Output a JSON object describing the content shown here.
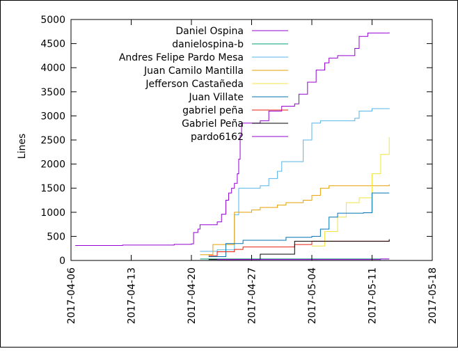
{
  "chart_data": {
    "type": "line",
    "title": "",
    "xlabel": "",
    "ylabel": "Lines",
    "xlim": [
      "2017-04-06",
      "2017-05-18"
    ],
    "ylim": [
      0,
      5000
    ],
    "x_ticks": [
      "2017-04-06",
      "2017-04-13",
      "2017-04-20",
      "2017-04-27",
      "2017-05-04",
      "2017-05-11",
      "2017-05-18"
    ],
    "y_ticks": [
      0,
      500,
      1000,
      1500,
      2000,
      2500,
      3000,
      3500,
      4000,
      4500,
      5000
    ],
    "grid": false,
    "legend_position": "top-right",
    "step": true,
    "series": [
      {
        "name": "Daniel Ospina",
        "color": "#9400d3",
        "points": [
          [
            "2017-04-06 12:00",
            310
          ],
          [
            "2017-04-12 00:00",
            320
          ],
          [
            "2017-04-18 00:00",
            335
          ],
          [
            "2017-04-20 00:00",
            345
          ],
          [
            "2017-04-20 06:00",
            580
          ],
          [
            "2017-04-20 18:00",
            650
          ],
          [
            "2017-04-21 00:00",
            740
          ],
          [
            "2017-04-23 00:00",
            800
          ],
          [
            "2017-04-23 12:00",
            960
          ],
          [
            "2017-04-24 00:00",
            1250
          ],
          [
            "2017-04-24 08:00",
            1400
          ],
          [
            "2017-04-24 16:00",
            1500
          ],
          [
            "2017-04-25 00:00",
            1600
          ],
          [
            "2017-04-25 08:00",
            1800
          ],
          [
            "2017-04-25 12:00",
            2100
          ],
          [
            "2017-04-25 16:00",
            2600
          ],
          [
            "2017-04-25 20:00",
            2850
          ],
          [
            "2017-04-28 00:00",
            2900
          ],
          [
            "2017-04-29 00:00",
            3100
          ],
          [
            "2017-04-30 12:00",
            3200
          ],
          [
            "2017-05-02 00:00",
            3250
          ],
          [
            "2017-05-02 12:00",
            3450
          ],
          [
            "2017-05-03 12:00",
            3700
          ],
          [
            "2017-05-04 12:00",
            3950
          ],
          [
            "2017-05-05 12:00",
            4100
          ],
          [
            "2017-05-06 00:00",
            4200
          ],
          [
            "2017-05-07 00:00",
            4250
          ],
          [
            "2017-05-09 00:00",
            4400
          ],
          [
            "2017-05-09 12:00",
            4650
          ],
          [
            "2017-05-10 12:00",
            4720
          ],
          [
            "2017-05-13 00:00",
            4730
          ]
        ]
      },
      {
        "name": "danielospina-b",
        "color": "#009e73",
        "points": [
          [
            "2017-04-21 00:00",
            30
          ],
          [
            "2017-05-09 00:00",
            30
          ],
          [
            "2017-05-13 00:00",
            30
          ]
        ]
      },
      {
        "name": "Andres Felipe Pardo Mesa",
        "color": "#56b4e9",
        "points": [
          [
            "2017-04-21 00:00",
            190
          ],
          [
            "2017-04-23 00:00",
            220
          ],
          [
            "2017-04-25 00:00",
            950
          ],
          [
            "2017-04-25 12:00",
            1500
          ],
          [
            "2017-04-28 00:00",
            1550
          ],
          [
            "2017-04-29 00:00",
            1700
          ],
          [
            "2017-04-30 00:00",
            1850
          ],
          [
            "2017-04-30 12:00",
            2050
          ],
          [
            "2017-05-03 00:00",
            2500
          ],
          [
            "2017-05-04 00:00",
            2850
          ],
          [
            "2017-05-05 00:00",
            2900
          ],
          [
            "2017-05-09 00:00",
            2950
          ],
          [
            "2017-05-09 12:00",
            3100
          ],
          [
            "2017-05-11 00:00",
            3150
          ],
          [
            "2017-05-13 00:00",
            3160
          ]
        ]
      },
      {
        "name": "Juan Camilo Mantilla",
        "color": "#e69f00",
        "points": [
          [
            "2017-04-21 00:00",
            120
          ],
          [
            "2017-04-22 12:00",
            330
          ],
          [
            "2017-04-25 00:00",
            1000
          ],
          [
            "2017-04-27 00:00",
            1050
          ],
          [
            "2017-04-28 00:00",
            1100
          ],
          [
            "2017-04-30 00:00",
            1150
          ],
          [
            "2017-05-01 00:00",
            1200
          ],
          [
            "2017-05-03 00:00",
            1250
          ],
          [
            "2017-05-04 00:00",
            1350
          ],
          [
            "2017-05-05 00:00",
            1500
          ],
          [
            "2017-05-06 00:00",
            1550
          ],
          [
            "2017-05-13 00:00",
            1580
          ]
        ]
      },
      {
        "name": "Jefferson Castañeda",
        "color": "#f0e442",
        "points": [
          [
            "2017-05-04 00:00",
            300
          ],
          [
            "2017-05-05 12:00",
            600
          ],
          [
            "2017-05-07 00:00",
            900
          ],
          [
            "2017-05-08 00:00",
            1200
          ],
          [
            "2017-05-09 12:00",
            1300
          ],
          [
            "2017-05-11 00:00",
            1800
          ],
          [
            "2017-05-12 00:00",
            2200
          ],
          [
            "2017-05-13 00:00",
            2560
          ]
        ]
      },
      {
        "name": "Juan Villate",
        "color": "#0072b2",
        "points": [
          [
            "2017-04-22 00:00",
            80
          ],
          [
            "2017-04-24 00:00",
            350
          ],
          [
            "2017-04-26 00:00",
            420
          ],
          [
            "2017-05-01 00:00",
            480
          ],
          [
            "2017-05-04 00:00",
            500
          ],
          [
            "2017-05-05 00:00",
            650
          ],
          [
            "2017-05-06 00:00",
            900
          ],
          [
            "2017-05-07 00:00",
            980
          ],
          [
            "2017-05-10 00:00",
            990
          ],
          [
            "2017-05-11 00:00",
            1400
          ],
          [
            "2017-05-13 00:00",
            1400
          ]
        ]
      },
      {
        "name": "gabriel peña",
        "color": "#e51e10",
        "points": [
          [
            "2017-04-22 00:00",
            100
          ],
          [
            "2017-04-23 00:00",
            180
          ],
          [
            "2017-04-25 00:00",
            230
          ],
          [
            "2017-04-26 00:00",
            280
          ],
          [
            "2017-05-02 00:00",
            330
          ],
          [
            "2017-05-04 00:00",
            400
          ],
          [
            "2017-05-13 00:00",
            420
          ]
        ]
      },
      {
        "name": "Gabriel Peña",
        "color": "#000000",
        "points": [
          [
            "2017-04-22 00:00",
            20
          ],
          [
            "2017-04-28 00:00",
            130
          ],
          [
            "2017-05-02 00:00",
            400
          ],
          [
            "2017-05-13 00:00",
            440
          ]
        ]
      },
      {
        "name": "pardo6162",
        "color": "#9400d3",
        "points": [
          [
            "2017-04-23 00:00",
            20
          ],
          [
            "2017-05-12 00:00",
            30
          ],
          [
            "2017-05-13 00:00",
            30
          ]
        ]
      }
    ]
  }
}
